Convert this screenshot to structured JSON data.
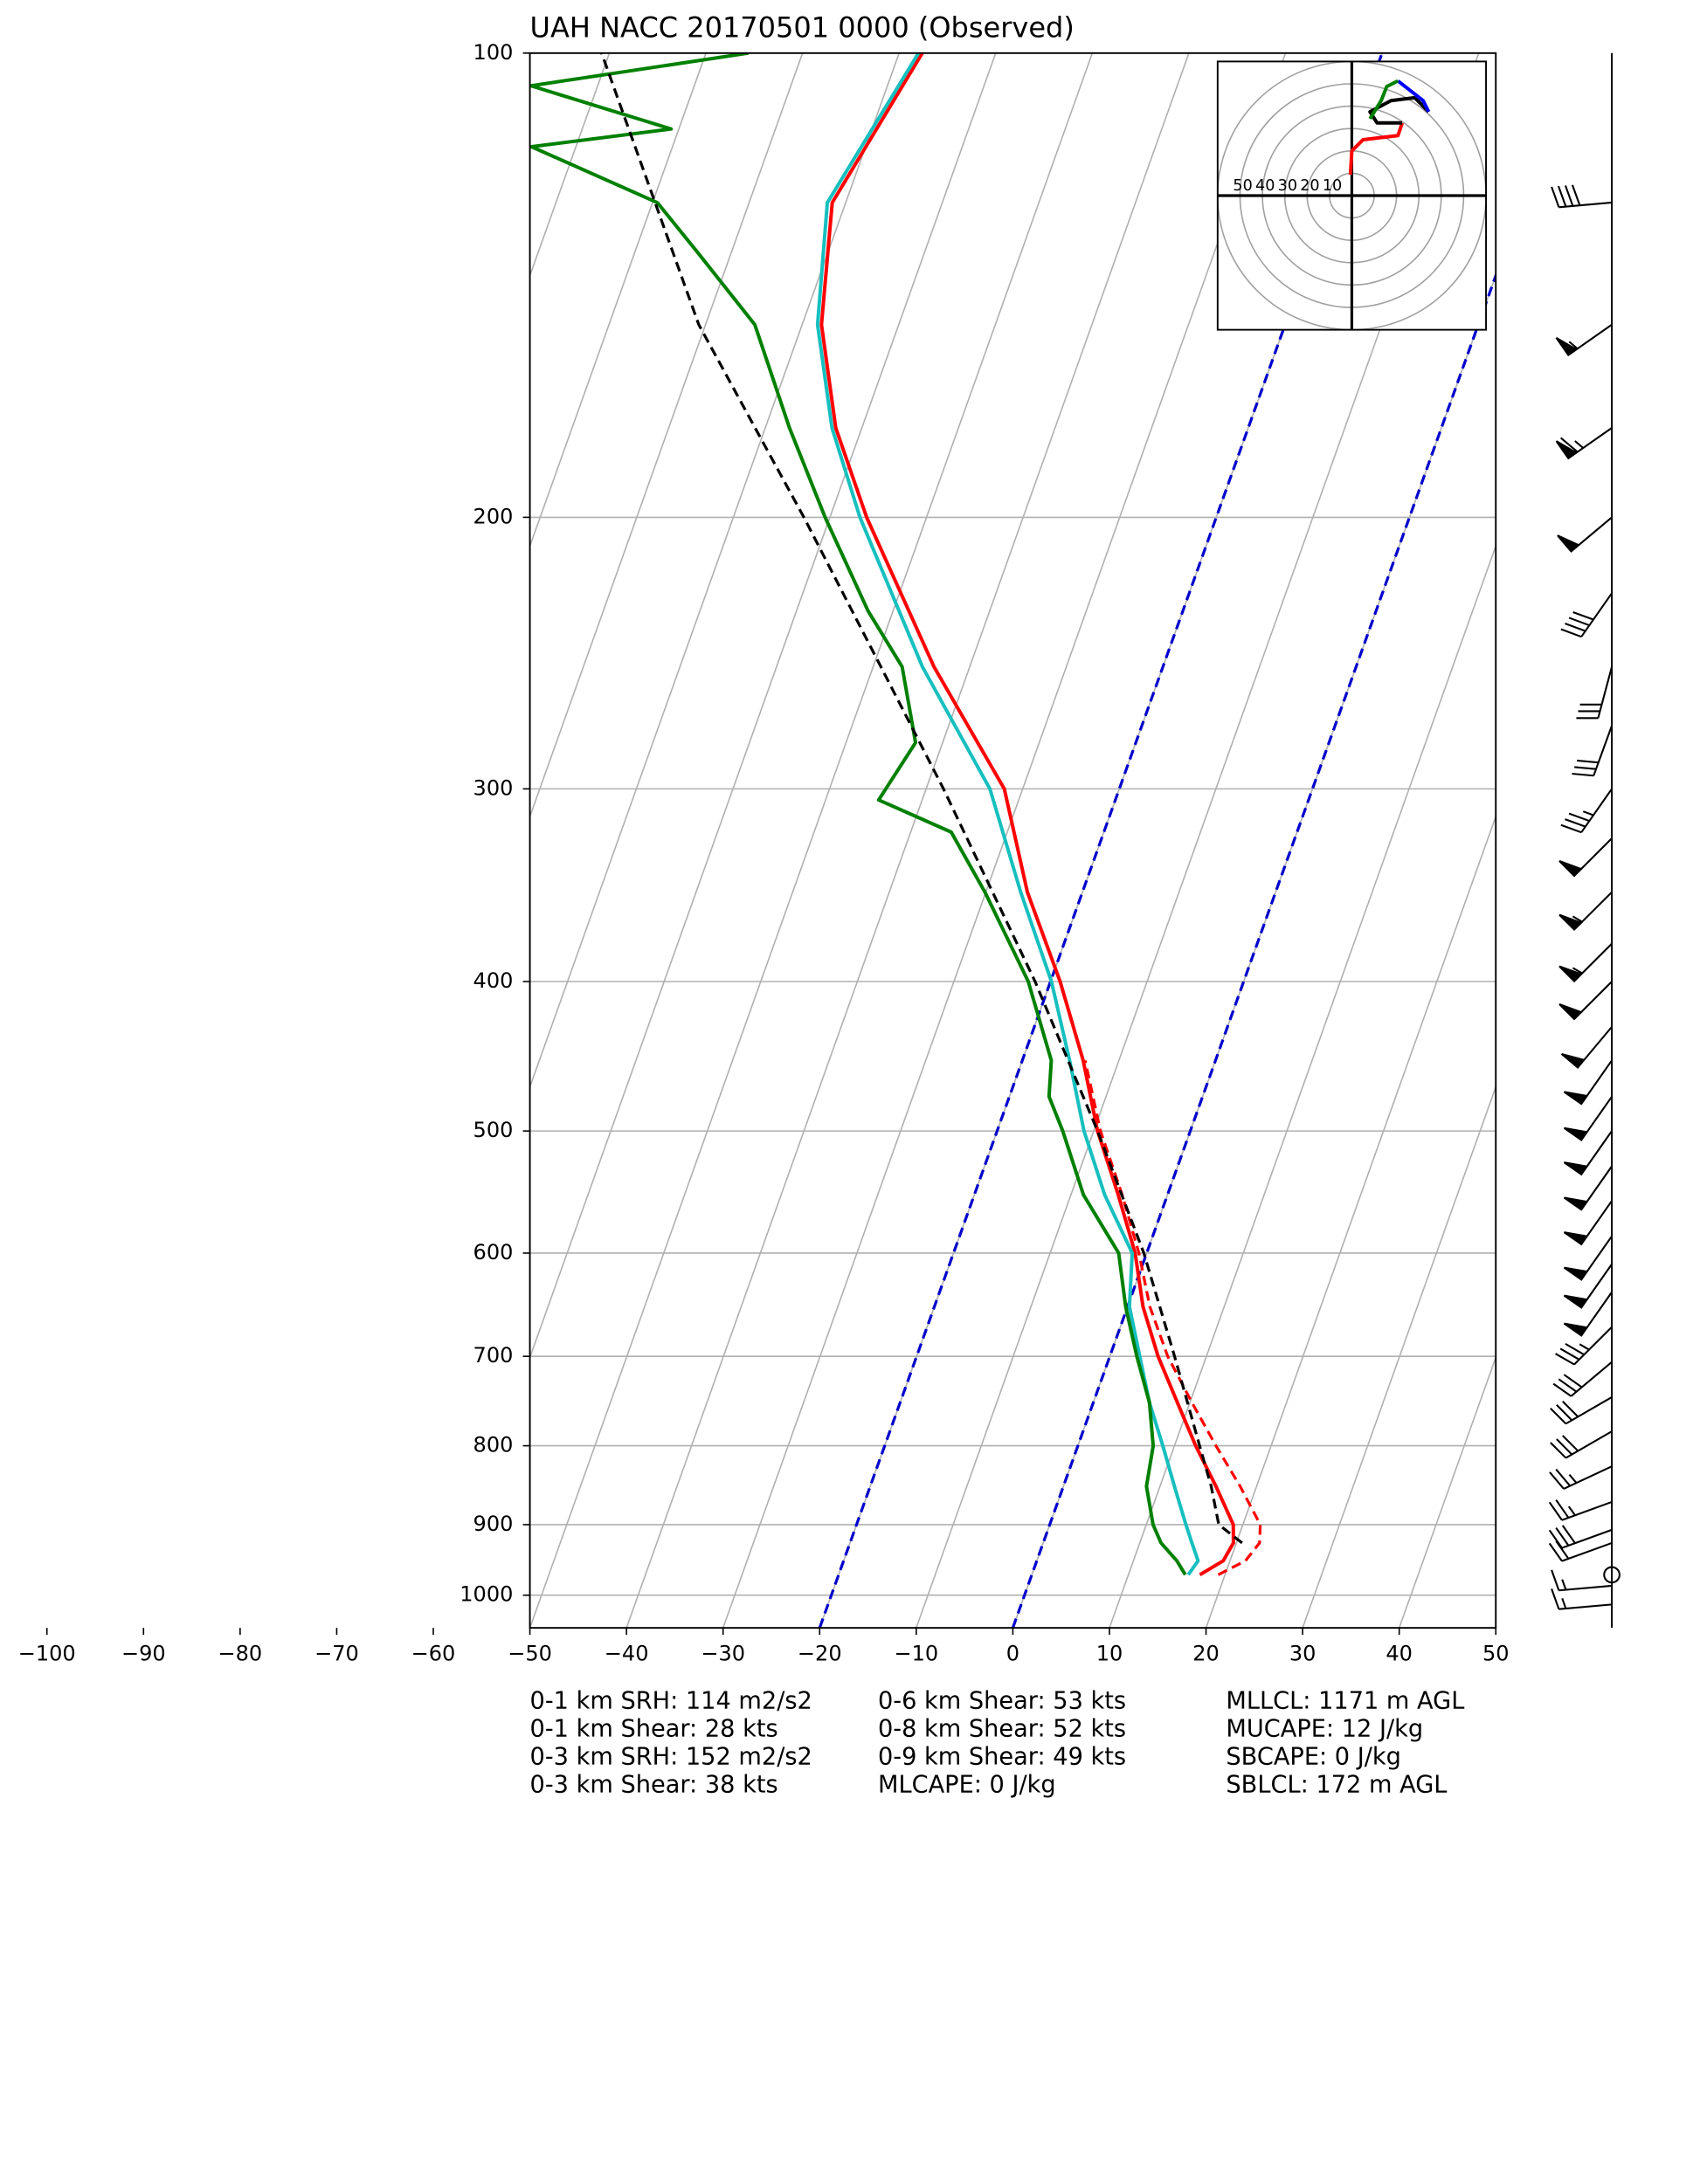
{
  "chart_data": {
    "type": "skewt",
    "title": "UAH NACC 20170501 0000   (Observed)",
    "xlim": [
      -50,
      50
    ],
    "ylim": [
      1050,
      100
    ],
    "log_y": true,
    "skew": 0.357,
    "grid": true,
    "xticks": [
      {
        "value": -100,
        "label": "−100"
      },
      {
        "value": -90,
        "label": "−90"
      },
      {
        "value": -80,
        "label": "−80"
      },
      {
        "value": -70,
        "label": "−70"
      },
      {
        "value": -60,
        "label": "−60"
      },
      {
        "value": -50,
        "label": "−50"
      },
      {
        "value": -40,
        "label": "−40"
      },
      {
        "value": -30,
        "label": "−30"
      },
      {
        "value": -20,
        "label": "−20"
      },
      {
        "value": -10,
        "label": "−10"
      },
      0,
      10,
      20,
      30,
      40,
      50
    ],
    "yticks": [
      100,
      200,
      300,
      400,
      500,
      600,
      700,
      800,
      900,
      1000
    ],
    "highlight_isotherms": [
      -20,
      0
    ],
    "highlight_color": "#0000cc",
    "series": [
      {
        "color": "#ff0000",
        "dashed": true,
        "pressure": [
          970,
          950,
          925,
          900,
          850,
          800,
          750,
          700,
          650,
          600,
          550,
          500,
          450
        ],
        "temperature": [
          19.3,
          21.6,
          22.4,
          21.8,
          18.3,
          14.3,
          10.2,
          6.0,
          2.3,
          -0.8,
          -4.7,
          -9.3,
          -13.5
        ]
      },
      {
        "color": "#ff0000",
        "dashed": false,
        "pressure": [
          970,
          950,
          925,
          900,
          850,
          800,
          750,
          700,
          650,
          600,
          550,
          500,
          450,
          400,
          350,
          300,
          250,
          200,
          175,
          150,
          125,
          100
        ],
        "temperature": [
          17.4,
          19.3,
          19.7,
          19.0,
          15.8,
          12.2,
          8.7,
          5.0,
          1.6,
          -1.2,
          -5.1,
          -9.6,
          -13.7,
          -19.0,
          -25.7,
          -31.9,
          -43.7,
          -56.2,
          -62.7,
          -68.0,
          -71.4,
          -67.6
        ]
      },
      {
        "color": "#17bfbf",
        "dashed": false,
        "pressure": [
          970,
          950,
          925,
          900,
          850,
          800,
          750,
          700,
          650,
          600,
          550,
          500,
          450,
          400,
          350,
          300,
          250,
          200,
          175,
          150,
          125,
          100
        ],
        "temperature": [
          16.2,
          16.7,
          15.4,
          14.1,
          11.5,
          8.8,
          5.8,
          3.1,
          0.2,
          -1.5,
          -6.5,
          -11.0,
          -15.1,
          -19.9,
          -26.4,
          -33.4,
          -44.9,
          -56.9,
          -63.1,
          -68.4,
          -71.9,
          -68.0
        ]
      },
      {
        "color": "#008000",
        "dashed": false,
        "pressure": [
          970,
          950,
          925,
          900,
          850,
          800,
          750,
          700,
          650,
          600,
          550,
          500,
          475,
          450,
          400,
          350,
          320,
          305,
          280,
          250,
          230,
          200,
          175,
          150,
          135,
          125,
          115,
          112,
          105,
          100
        ],
        "temperature": [
          15.9,
          14.5,
          12.2,
          10.7,
          8.6,
          7.8,
          5.8,
          2.8,
          -0.2,
          -2.9,
          -8.7,
          -13.2,
          -15.9,
          -17.0,
          -22.3,
          -30.1,
          -35.8,
          -44.5,
          -42.8,
          -47.0,
          -52.6,
          -60.5,
          -67.5,
          -74.9,
          -83.3,
          -89.5,
          -104.6,
          -90.8,
          -106.9,
          -85.6
        ]
      },
      {
        "color": "#000000",
        "dashed": true,
        "pressure": [
          925,
          900,
          850,
          800,
          700,
          600,
          500,
          400,
          300,
          250,
          200,
          150,
          100
        ],
        "temperature": [
          20.6,
          17.5,
          15.3,
          12.6,
          6.7,
          -0.3,
          -9.6,
          -21.6,
          -38.2,
          -49.2,
          -62.7,
          -80.7,
          -100.8
        ]
      }
    ],
    "barbs": [
      {
        "pressure": 125,
        "direction": 265,
        "speed": 40
      },
      {
        "pressure": 150,
        "direction": 235,
        "speed": 55
      },
      {
        "pressure": 175,
        "direction": 235,
        "speed": 65
      },
      {
        "pressure": 200,
        "direction": 230,
        "speed": 50
      },
      {
        "pressure": 224,
        "direction": 215,
        "speed": 40
      },
      {
        "pressure": 250,
        "direction": 195,
        "speed": 30
      },
      {
        "pressure": 273,
        "direction": 200,
        "speed": 30
      },
      {
        "pressure": 300,
        "direction": 215,
        "speed": 35
      },
      {
        "pressure": 323,
        "direction": 225,
        "speed": 50
      },
      {
        "pressure": 350,
        "direction": 225,
        "speed": 55
      },
      {
        "pressure": 378,
        "direction": 225,
        "speed": 55
      },
      {
        "pressure": 400,
        "direction": 225,
        "speed": 50
      },
      {
        "pressure": 428,
        "direction": 220,
        "speed": 50
      },
      {
        "pressure": 450,
        "direction": 215,
        "speed": 50
      },
      {
        "pressure": 475,
        "direction": 215,
        "speed": 50
      },
      {
        "pressure": 500,
        "direction": 215,
        "speed": 50
      },
      {
        "pressure": 527,
        "direction": 215,
        "speed": 50
      },
      {
        "pressure": 555,
        "direction": 215,
        "speed": 50
      },
      {
        "pressure": 585,
        "direction": 215,
        "speed": 50
      },
      {
        "pressure": 610,
        "direction": 215,
        "speed": 50
      },
      {
        "pressure": 636,
        "direction": 215,
        "speed": 50
      },
      {
        "pressure": 670,
        "direction": 225,
        "speed": 35
      },
      {
        "pressure": 706,
        "direction": 230,
        "speed": 30
      },
      {
        "pressure": 744,
        "direction": 240,
        "speed": 30
      },
      {
        "pressure": 783,
        "direction": 240,
        "speed": 30
      },
      {
        "pressure": 825,
        "direction": 245,
        "speed": 25
      },
      {
        "pressure": 870,
        "direction": 250,
        "speed": 25
      },
      {
        "pressure": 907,
        "direction": 250,
        "speed": 30
      },
      {
        "pressure": 925,
        "direction": 250,
        "speed": 20
      },
      {
        "pressure": 970,
        "direction": 0,
        "speed": 0
      },
      {
        "pressure": 986,
        "direction": 265,
        "speed": 15
      },
      {
        "pressure": 1014,
        "direction": 265,
        "speed": 15
      }
    ],
    "hodograph": {
      "range": 60,
      "ring_labels": [
        50,
        40,
        30,
        20,
        10
      ],
      "segments": [
        {
          "color": "#ff0000",
          "u": [
            -0.6,
            0,
            5,
            20.6,
            22.5
          ],
          "v": [
            9.4,
            20,
            25,
            26.9,
            32.5
          ]
        },
        {
          "color": "#000000",
          "u": [
            22.5,
            11.3,
            8.1,
            17.5,
            28.1,
            34.4
          ],
          "v": [
            32.5,
            32.5,
            37.5,
            42.5,
            43.8,
            37.5
          ]
        },
        {
          "color": "#0000ff",
          "u": [
            34.4,
            31.9,
            23.8,
            20.6
          ],
          "v": [
            37.5,
            42.5,
            48.8,
            51.3
          ]
        },
        {
          "color": "#008000",
          "u": [
            20.6,
            15.6,
            13.1,
            8.1
          ],
          "v": [
            51.3,
            48.8,
            42.5,
            34.4
          ]
        }
      ]
    },
    "stats": [
      [
        "0-1 km SRH: 114 m2/s2",
        "0-1 km Shear: 28 kts",
        "0-3 km SRH: 152 m2/s2",
        "0-3 km Shear: 38 kts"
      ],
      [
        "0-6 km Shear: 53 kts",
        "0-8 km Shear: 52 kts",
        "0-9 km Shear: 49 kts",
        "MLCAPE: 0 J/kg"
      ],
      [
        "MLLCL: 1171 m AGL",
        "MUCAPE: 12 J/kg",
        "SBCAPE: 0 J/kg",
        "SBLCL: 172 m AGL"
      ]
    ]
  }
}
